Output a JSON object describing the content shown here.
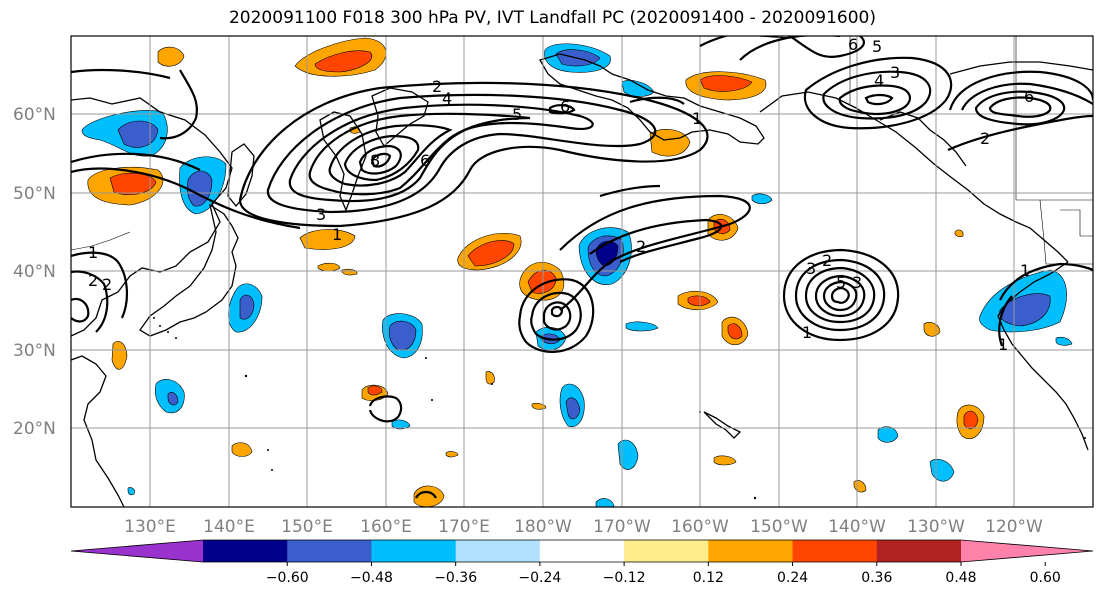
{
  "title": "2020091100 F018 300 hPa PV, IVT Landfall PC (2020091400 - 2020091600)",
  "map": {
    "lat_labels": [
      "60°N",
      "50°N",
      "40°N",
      "30°N",
      "20°N"
    ],
    "lon_labels": [
      "130°E",
      "140°E",
      "150°E",
      "160°E",
      "170°E",
      "180°W",
      "170°W",
      "160°W",
      "150°W",
      "140°W",
      "130°W",
      "120°W"
    ],
    "contour_labels": [
      "2",
      "4",
      "5",
      "6",
      "3",
      "8",
      "6",
      "1",
      "2",
      "1",
      "2",
      "3",
      "2",
      "3",
      "5",
      "1",
      "1",
      "6",
      "5",
      "4",
      "3",
      "2",
      "6",
      "2",
      "1",
      "1"
    ]
  },
  "colorbar": {
    "colors": [
      "#9a32cd",
      "#00008b",
      "#3a5fcd",
      "#00bfff",
      "#b0e2ff",
      "#ffffff",
      "#ffec8b",
      "#ffa500",
      "#ff4500",
      "#b22222",
      "#ff82ab"
    ],
    "tick_labels": [
      "−0.60",
      "−0.48",
      "−0.36",
      "−0.24",
      "−0.12",
      "0.12",
      "0.24",
      "0.36",
      "0.48",
      "0.60"
    ]
  },
  "colors": {
    "grid": "#999999",
    "coast": "#000000",
    "contour": "#000000"
  }
}
